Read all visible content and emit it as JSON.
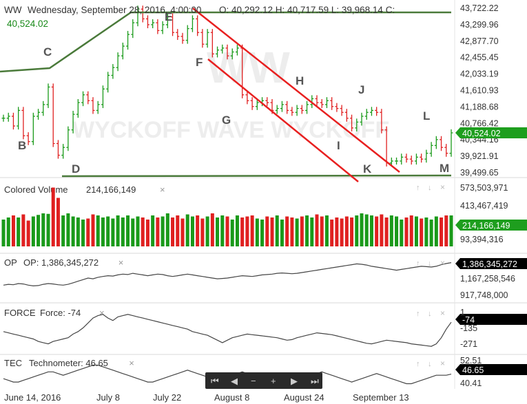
{
  "header": {
    "symbol": "WW",
    "datetime": "Wednesday, September 28, 2016, 4:00:00",
    "ohlc": "O: 40,292.12 H: 40,717.59 L: 39,968.14 C:",
    "last_value": "40,524.02",
    "current_price": "40,524.02"
  },
  "colors": {
    "up": "#1a9a1a",
    "down": "#e02020",
    "trend_green": "#4a7a3a",
    "channel_red": "#e82020",
    "badge_green": "#1e9e1e",
    "badge_black": "#000000"
  },
  "watermark": {
    "logo_text": "WW",
    "text": "WYCKOFF WAVE WYCKOFF"
  },
  "price_axis": [
    "43,722.22",
    "43,299.96",
    "42,877.70",
    "42,455.45",
    "42,033.19",
    "41,610.93",
    "41,188.68",
    "40,766.42",
    "40,344.16",
    "39,921.91",
    "39,499.65"
  ],
  "wave_labels": [
    "B",
    "C",
    "D",
    "E",
    "F",
    "G",
    "H",
    "I",
    "J",
    "K",
    "L",
    "M"
  ],
  "panels": {
    "volume": {
      "title": "Colored Volume",
      "value": "214,166,149",
      "axis": [
        "573,503,971",
        "413,467,419",
        "253,430,867",
        "93,394,316"
      ]
    },
    "op": {
      "title": "OP",
      "value_label": "OP: 1,386,345,272",
      "badge": "1,386,345,272",
      "axis": [
        "1,167,258,546",
        "917,748,000"
      ]
    },
    "force": {
      "title": "FORCE",
      "value_label": "Force: -74",
      "badge": "-74",
      "axis": [
        "1",
        "-135",
        "-271"
      ]
    },
    "tec": {
      "title": "TEC",
      "value_label": "Technometer: 46.65",
      "badge": "46.65",
      "axis": [
        "52.51",
        "40.41"
      ]
    }
  },
  "x_axis": [
    "June 14, 2016",
    "July 8",
    "July 22",
    "August 8",
    "August 24",
    "September 13"
  ],
  "toolbar": {
    "first": "first-icon",
    "prev": "prev-icon",
    "zoom_out": "minus-icon",
    "zoom_in": "plus-icon",
    "next": "next-icon",
    "last": "last-icon"
  },
  "chart_data": {
    "type": "bar",
    "title": "WW",
    "ylim": [
      39499.65,
      43722.22
    ],
    "series": [
      {
        "name": "price_close",
        "values": [
          40900,
          40950,
          40700,
          41100,
          40450,
          40300,
          40950,
          41050,
          41250,
          41700,
          40250,
          39950,
          40150,
          40600,
          41000,
          41300,
          41500,
          41350,
          41100,
          41250,
          41650,
          42000,
          42200,
          42500,
          42750,
          43050,
          43350,
          43700,
          43450,
          43300,
          43350,
          43150,
          43300,
          43500,
          43100,
          43000,
          42900,
          43200,
          43450,
          43100,
          42800,
          43100,
          42550,
          42650,
          42700,
          42500,
          42600,
          42700,
          41500,
          41350,
          41200,
          41300,
          41350,
          41300,
          41100,
          41150,
          41250,
          41100,
          41050,
          41150,
          41100,
          41250,
          41400,
          41300,
          41250,
          41350,
          41200,
          41150,
          41050,
          40900,
          40650,
          40800,
          40950,
          41050,
          41100,
          41050,
          40600,
          39750,
          39800,
          39800,
          39900,
          39850,
          39800,
          39900,
          39850,
          40000,
          40200,
          40350,
          40150,
          40000,
          40524
        ]
      },
      {
        "name": "volume",
        "values": [
          260,
          280,
          300,
          280,
          310,
          250,
          290,
          305,
          320,
          315,
          570,
          470,
          300,
          320,
          290,
          280,
          260,
          270,
          310,
          300,
          280,
          290,
          270,
          300,
          280,
          300,
          270,
          290,
          280,
          260,
          300,
          280,
          290,
          320,
          280,
          300,
          270,
          310,
          290,
          300,
          270,
          290,
          320,
          280,
          300,
          290,
          260,
          300,
          280,
          290,
          300,
          270,
          260,
          290,
          280,
          300,
          260,
          290,
          280,
          270,
          290,
          300,
          280,
          310,
          290,
          300,
          260,
          280,
          270,
          290,
          280,
          300,
          320,
          310,
          300,
          290,
          310,
          280,
          300,
          290,
          260,
          280,
          300,
          290,
          270,
          280,
          260,
          290,
          280,
          300,
          300
        ]
      },
      {
        "name": "op",
        "values": [
          1100,
          1110,
          1105,
          1120,
          1115,
          1100,
          1090,
          1095,
          1110,
          1120,
          1115,
          1105,
          1100,
          1110,
          1130,
          1150,
          1170,
          1190,
          1180,
          1200,
          1210,
          1220,
          1215,
          1230,
          1240,
          1235,
          1250,
          1240,
          1230,
          1220,
          1230,
          1240,
          1235,
          1220,
          1210,
          1220,
          1230,
          1240,
          1230,
          1220,
          1210,
          1200,
          1190,
          1180,
          1185,
          1190,
          1200,
          1210,
          1220,
          1215,
          1210,
          1220,
          1230,
          1235,
          1240,
          1250,
          1255,
          1250,
          1245,
          1250,
          1260,
          1270,
          1280,
          1290,
          1300,
          1310,
          1320,
          1330,
          1340,
          1350,
          1360,
          1370,
          1365,
          1355,
          1340,
          1330,
          1320,
          1310,
          1300,
          1290,
          1300,
          1310,
          1320,
          1330,
          1340,
          1335,
          1330,
          1340,
          1360,
          1375,
          1386
        ]
      },
      {
        "name": "force",
        "values": [
          -150,
          -160,
          -170,
          -180,
          -190,
          -200,
          -210,
          -230,
          -240,
          -250,
          -230,
          -220,
          -210,
          -200,
          -170,
          -150,
          -120,
          -80,
          -40,
          -20,
          -10,
          -40,
          -60,
          -30,
          -20,
          -10,
          -20,
          -30,
          -40,
          -50,
          -60,
          -70,
          -80,
          -90,
          -100,
          -110,
          -120,
          -130,
          -150,
          -160,
          -170,
          -180,
          -200,
          -220,
          -240,
          -220,
          -200,
          -190,
          -180,
          -170,
          -175,
          -180,
          -185,
          -190,
          -195,
          -200,
          -210,
          -220,
          -215,
          -200,
          -190,
          -180,
          -170,
          -160,
          -165,
          -170,
          -175,
          -185,
          -195,
          -205,
          -215,
          -225,
          -235,
          -245,
          -250,
          -240,
          -230,
          -220,
          -225,
          -230,
          -235,
          -240,
          -250,
          -255,
          -260,
          -265,
          -270,
          -250,
          -200,
          -130,
          -74
        ]
      },
      {
        "name": "technometer",
        "values": [
          44,
          43,
          42,
          42,
          43,
          44,
          45,
          46,
          47,
          48,
          48,
          47,
          46,
          47,
          48,
          49,
          50,
          51,
          52,
          52,
          51,
          50,
          49,
          48,
          47,
          46,
          45,
          44,
          43,
          42,
          42,
          43,
          44,
          45,
          46,
          47,
          48,
          49,
          48,
          47,
          46,
          45,
          44,
          43,
          44,
          45,
          46,
          47,
          48,
          47,
          46,
          45,
          44,
          43,
          44,
          45,
          46,
          45,
          44,
          43,
          44,
          45,
          46,
          47,
          48,
          47,
          46,
          45,
          44,
          43,
          42,
          43,
          44,
          45,
          46,
          47,
          46,
          45,
          44,
          43,
          42,
          41,
          41,
          42,
          43,
          44,
          45,
          46,
          46,
          46,
          46.65
        ]
      }
    ]
  }
}
